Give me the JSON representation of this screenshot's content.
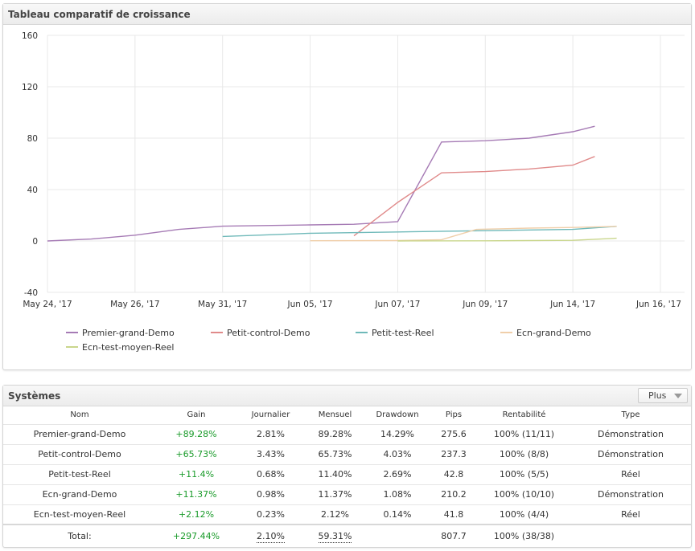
{
  "chart_panel": {
    "title": "Tableau comparatif de croissance"
  },
  "systems_panel": {
    "title": "Systèmes",
    "more_button": "Plus"
  },
  "chart_data": {
    "type": "line",
    "title": "",
    "xlabel": "",
    "ylabel": "",
    "ylim": [
      -40,
      160
    ],
    "yticks": [
      160,
      120,
      80,
      40,
      0,
      -40
    ],
    "x_tick_labels": [
      "May 24, '17",
      "May 26, '17",
      "May 31, '17",
      "Jun 05, '17",
      "Jun 07, '17",
      "Jun 09, '17",
      "Jun 14, '17",
      "Jun 16, '17"
    ],
    "grid": true,
    "legend_position": "bottom",
    "series": [
      {
        "name": "Premier-grand-Demo",
        "color": "#a67bb5",
        "points": [
          [
            0,
            0
          ],
          [
            0.5,
            1.5
          ],
          [
            1,
            4.5
          ],
          [
            1.5,
            9
          ],
          [
            2,
            11.5
          ],
          [
            3,
            12.5
          ],
          [
            3.5,
            13
          ],
          [
            4,
            15
          ],
          [
            4.5,
            77
          ],
          [
            5,
            78
          ],
          [
            5.5,
            80
          ],
          [
            6,
            85
          ],
          [
            6.25,
            89.28
          ]
        ]
      },
      {
        "name": "Petit-control-Demo",
        "color": "#e08a8a",
        "points": [
          [
            3.5,
            4
          ],
          [
            4,
            30
          ],
          [
            4.5,
            53
          ],
          [
            5,
            54
          ],
          [
            5.5,
            56
          ],
          [
            6,
            59
          ],
          [
            6.25,
            65.73
          ]
        ]
      },
      {
        "name": "Petit-test-Reel",
        "color": "#6fb9b9",
        "points": [
          [
            2,
            3.5
          ],
          [
            3,
            6
          ],
          [
            4,
            7
          ],
          [
            5,
            8
          ],
          [
            6,
            9
          ],
          [
            6.5,
            11.4
          ]
        ]
      },
      {
        "name": "Ecn-grand-Demo",
        "color": "#f0cfaa",
        "points": [
          [
            3,
            0.2
          ],
          [
            4,
            0.3
          ],
          [
            4.5,
            1
          ],
          [
            4.9,
            9
          ],
          [
            5.5,
            10
          ],
          [
            6,
            10.5
          ],
          [
            6.5,
            11.37
          ]
        ]
      },
      {
        "name": "Ecn-test-moyen-Reel",
        "color": "#c9d68c",
        "points": [
          [
            4,
            0
          ],
          [
            5,
            0.1
          ],
          [
            6,
            0.5
          ],
          [
            6.5,
            2.12
          ]
        ]
      }
    ]
  },
  "systems_table": {
    "headers": [
      "Nom",
      "Gain",
      "Journalier",
      "Mensuel",
      "Drawdown",
      "Pips",
      "Rentabilité",
      "Type"
    ],
    "rows": [
      [
        "Premier-grand-Demo",
        "+89.28%",
        "2.81%",
        "89.28%",
        "14.29%",
        "275.6",
        "100% (11/11)",
        "Démonstration"
      ],
      [
        "Petit-control-Demo",
        "+65.73%",
        "3.43%",
        "65.73%",
        "4.03%",
        "237.3",
        "100% (8/8)",
        "Démonstration"
      ],
      [
        "Petit-test-Reel",
        "+11.4%",
        "0.68%",
        "11.40%",
        "2.69%",
        "42.8",
        "100% (5/5)",
        "Réel"
      ],
      [
        "Ecn-grand-Demo",
        "+11.37%",
        "0.98%",
        "11.37%",
        "1.08%",
        "210.2",
        "100% (10/10)",
        "Démonstration"
      ],
      [
        "Ecn-test-moyen-Reel",
        "+2.12%",
        "0.23%",
        "2.12%",
        "0.14%",
        "41.8",
        "100% (4/4)",
        "Réel"
      ]
    ],
    "total": [
      "Total:",
      "+297.44%",
      "2.10%",
      "59.31%",
      "",
      "807.7",
      "100% (38/38)",
      ""
    ]
  },
  "colors": {
    "gain_positive": "#1a9b2a",
    "grid": "#e8e8e8"
  }
}
